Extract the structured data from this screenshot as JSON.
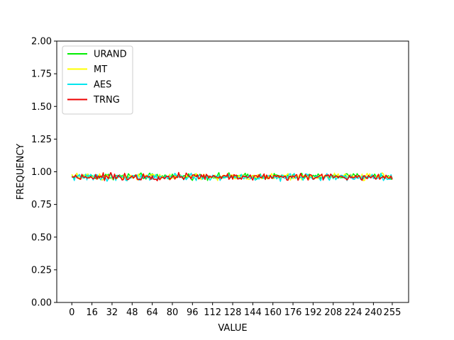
{
  "chart_data": {
    "type": "line",
    "title": "",
    "xlabel": "VALUE",
    "ylabel": "FREQUENCY",
    "xlim": [
      -12,
      268
    ],
    "ylim": [
      0,
      2
    ],
    "xticks": [
      0,
      16,
      32,
      48,
      64,
      80,
      96,
      112,
      128,
      144,
      160,
      176,
      192,
      208,
      224,
      240,
      255
    ],
    "yticks": [
      "0.00",
      "0.25",
      "0.50",
      "0.75",
      "1.00",
      "1.25",
      "1.50",
      "1.75",
      "2.00"
    ],
    "grid": false,
    "legend_position": "top-left",
    "x_range": [
      0,
      255
    ],
    "mean_frequency": 0.96,
    "series": [
      {
        "name": "URAND",
        "color": "#00ee00",
        "mean": 0.965,
        "min": 0.93,
        "max": 1.0
      },
      {
        "name": "MT",
        "color": "#ffff00",
        "mean": 0.962,
        "min": 0.9,
        "max": 1.0
      },
      {
        "name": "AES",
        "color": "#00e5ee",
        "mean": 0.958,
        "min": 0.91,
        "max": 0.995
      },
      {
        "name": "TRNG",
        "color": "#ee0000",
        "mean": 0.962,
        "min": 0.92,
        "max": 1.0
      }
    ]
  }
}
